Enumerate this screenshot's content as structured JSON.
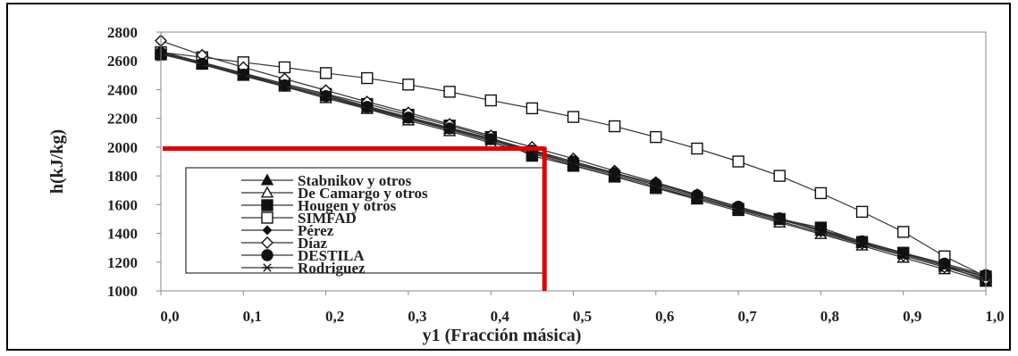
{
  "chart_data": {
    "type": "line",
    "title": "",
    "xlabel": "y1 (Fracción másica)",
    "ylabel": "h(kJ/kg)",
    "xlim": [
      0.0,
      1.0
    ],
    "ylim": [
      1000,
      2800
    ],
    "xticks": [
      "0,0",
      "0,1",
      "0,2",
      "0,3",
      "0,4",
      "0,5",
      "0,6",
      "0,7",
      "0,8",
      "0,9",
      "1,0"
    ],
    "yticks": [
      "1000",
      "1200",
      "1400",
      "1600",
      "1800",
      "2000",
      "2200",
      "2400",
      "2600",
      "2800"
    ],
    "grid": false,
    "legend_position": "lower-left",
    "x": [
      0.0,
      0.05,
      0.1,
      0.15,
      0.2,
      0.25,
      0.3,
      0.35,
      0.4,
      0.45,
      0.5,
      0.55,
      0.6,
      0.65,
      0.7,
      0.75,
      0.8,
      0.85,
      0.9,
      0.95,
      1.0
    ],
    "series": [
      {
        "name": "Stabnikov y otros",
        "marker": "filled-triangle",
        "values": [
          2660,
          2585,
          2505,
          2430,
          2355,
          2275,
          2200,
          2125,
          2050,
          1970,
          1890,
          1815,
          1735,
          1655,
          1575,
          1495,
          1420,
          1335,
          1255,
          1175,
          1095
        ]
      },
      {
        "name": "De Camargo y otros",
        "marker": "open-triangle",
        "values": [
          2650,
          2575,
          2495,
          2420,
          2340,
          2265,
          2185,
          2110,
          2030,
          1955,
          1875,
          1795,
          1715,
          1635,
          1555,
          1475,
          1395,
          1315,
          1230,
          1150,
          1065
        ]
      },
      {
        "name": "Hougen y otros",
        "marker": "filled-square",
        "values": [
          2645,
          2580,
          2510,
          2440,
          2370,
          2300,
          2225,
          2150,
          2070,
          1940,
          1870,
          1795,
          1715,
          1645,
          1570,
          1500,
          1440,
          1340,
          1265,
          1175,
          1070
        ]
      },
      {
        "name": "SIMFAD",
        "marker": "open-square",
        "values": [
          2660,
          2625,
          2590,
          2555,
          2515,
          2480,
          2435,
          2385,
          2325,
          2270,
          2210,
          2145,
          2070,
          1990,
          1900,
          1800,
          1680,
          1550,
          1410,
          1240,
          1100
        ]
      },
      {
        "name": "Pérez",
        "marker": "small-filled-diamond",
        "values": [
          2665,
          2590,
          2515,
          2440,
          2365,
          2285,
          2210,
          2135,
          2060,
          1980,
          1900,
          1820,
          1745,
          1665,
          1585,
          1505,
          1425,
          1345,
          1260,
          1180,
          1100
        ]
      },
      {
        "name": "Díaz",
        "marker": "open-diamond",
        "values": [
          2740,
          2640,
          2555,
          2475,
          2395,
          2315,
          2240,
          2160,
          2080,
          2000,
          1920,
          1835,
          1755,
          1670,
          1585,
          1500,
          1415,
          1330,
          1245,
          1165,
          1080
        ]
      },
      {
        "name": "DESTILA",
        "marker": "filled-circle",
        "values": [
          2655,
          2580,
          2505,
          2430,
          2355,
          2280,
          2205,
          2130,
          2055,
          1975,
          1900,
          1820,
          1745,
          1665,
          1585,
          1505,
          1425,
          1345,
          1265,
          1190,
          1110
        ]
      },
      {
        "name": "Rodriguez",
        "marker": "asterisk",
        "values": [
          2650,
          2575,
          2500,
          2425,
          2350,
          2270,
          2195,
          2120,
          2040,
          1965,
          1885,
          1805,
          1725,
          1645,
          1565,
          1485,
          1405,
          1325,
          1245,
          1165,
          1085
        ]
      }
    ],
    "annotation": {
      "type": "red-guide-lines",
      "x": 0.465,
      "y": 1990,
      "color": "#e00000"
    }
  }
}
